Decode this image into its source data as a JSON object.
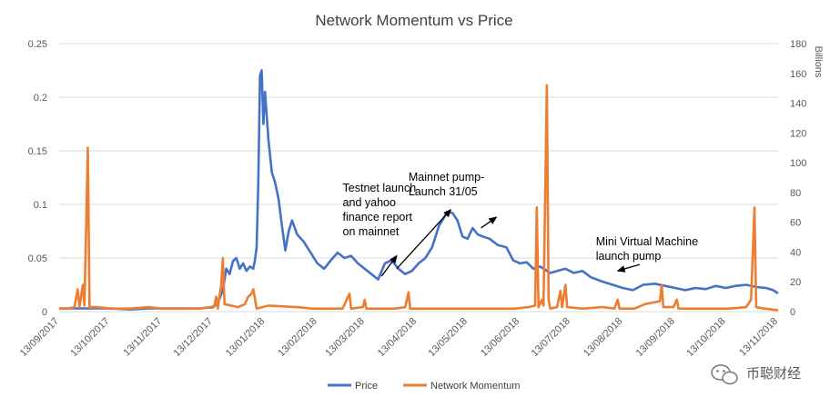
{
  "chart_data": {
    "type": "line",
    "title": "Network Momentum vs Price",
    "xlabel": "",
    "ylabel": "",
    "y2label": "Billions",
    "x_ticks": [
      "13/09/2017",
      "13/10/2017",
      "13/11/2017",
      "13/12/2017",
      "13/01/2018",
      "13/02/2018",
      "13/03/2018",
      "13/04/2018",
      "13/05/2018",
      "13/06/2018",
      "13/07/2018",
      "13/08/2018",
      "13/09/2018",
      "13/10/2018",
      "13/11/2018"
    ],
    "ylim": [
      0,
      0.25
    ],
    "y_ticks": [
      "0",
      "0.05",
      "0.1",
      "0.15",
      "0.2",
      "0.25"
    ],
    "y2lim": [
      0,
      180
    ],
    "y2_ticks": [
      "0",
      "20",
      "40",
      "60",
      "80",
      "100",
      "120",
      "140",
      "160",
      "180"
    ],
    "grid": true,
    "legend_position": "bottom",
    "series": [
      {
        "name": "Price",
        "axis": "left",
        "color": "#4472c4",
        "points": [
          [
            "2017-09-13",
            0.003
          ],
          [
            "2017-09-20",
            0.003
          ],
          [
            "2017-10-01",
            0.003
          ],
          [
            "2017-10-13",
            0.003
          ],
          [
            "2017-10-25",
            0.002
          ],
          [
            "2017-11-05",
            0.003
          ],
          [
            "2017-11-13",
            0.003
          ],
          [
            "2017-11-25",
            0.003
          ],
          [
            "2017-12-05",
            0.003
          ],
          [
            "2017-12-13",
            0.004
          ],
          [
            "2017-12-16",
            0.008
          ],
          [
            "2017-12-19",
            0.02
          ],
          [
            "2017-12-21",
            0.04
          ],
          [
            "2017-12-23",
            0.035
          ],
          [
            "2017-12-25",
            0.047
          ],
          [
            "2017-12-27",
            0.05
          ],
          [
            "2017-12-29",
            0.04
          ],
          [
            "2017-12-31",
            0.045
          ],
          [
            "2018-01-02",
            0.038
          ],
          [
            "2018-01-04",
            0.042
          ],
          [
            "2018-01-06",
            0.04
          ],
          [
            "2018-01-07",
            0.048
          ],
          [
            "2018-01-08",
            0.06
          ],
          [
            "2018-01-09",
            0.12
          ],
          [
            "2018-01-10",
            0.22
          ],
          [
            "2018-01-11",
            0.225
          ],
          [
            "2018-01-12",
            0.175
          ],
          [
            "2018-01-13",
            0.205
          ],
          [
            "2018-01-15",
            0.16
          ],
          [
            "2018-01-17",
            0.13
          ],
          [
            "2018-01-19",
            0.12
          ],
          [
            "2018-01-21",
            0.105
          ],
          [
            "2018-01-23",
            0.08
          ],
          [
            "2018-01-25",
            0.057
          ],
          [
            "2018-01-27",
            0.075
          ],
          [
            "2018-01-29",
            0.085
          ],
          [
            "2018-02-01",
            0.072
          ],
          [
            "2018-02-05",
            0.065
          ],
          [
            "2018-02-09",
            0.055
          ],
          [
            "2018-02-13",
            0.045
          ],
          [
            "2018-02-17",
            0.04
          ],
          [
            "2018-02-21",
            0.048
          ],
          [
            "2018-02-25",
            0.055
          ],
          [
            "2018-03-01",
            0.05
          ],
          [
            "2018-03-05",
            0.052
          ],
          [
            "2018-03-09",
            0.045
          ],
          [
            "2018-03-13",
            0.04
          ],
          [
            "2018-03-17",
            0.035
          ],
          [
            "2018-03-21",
            0.03
          ],
          [
            "2018-03-25",
            0.045
          ],
          [
            "2018-03-29",
            0.048
          ],
          [
            "2018-04-02",
            0.04
          ],
          [
            "2018-04-06",
            0.035
          ],
          [
            "2018-04-10",
            0.038
          ],
          [
            "2018-04-14",
            0.045
          ],
          [
            "2018-04-18",
            0.05
          ],
          [
            "2018-04-22",
            0.06
          ],
          [
            "2018-04-26",
            0.08
          ],
          [
            "2018-05-01",
            0.093
          ],
          [
            "2018-05-04",
            0.092
          ],
          [
            "2018-05-07",
            0.085
          ],
          [
            "2018-05-10",
            0.07
          ],
          [
            "2018-05-13",
            0.068
          ],
          [
            "2018-05-16",
            0.078
          ],
          [
            "2018-05-19",
            0.072
          ],
          [
            "2018-05-22",
            0.07
          ],
          [
            "2018-05-26",
            0.068
          ],
          [
            "2018-05-31",
            0.062
          ],
          [
            "2018-06-05",
            0.06
          ],
          [
            "2018-06-09",
            0.048
          ],
          [
            "2018-06-13",
            0.045
          ],
          [
            "2018-06-17",
            0.046
          ],
          [
            "2018-06-21",
            0.04
          ],
          [
            "2018-06-25",
            0.042
          ],
          [
            "2018-07-01",
            0.036
          ],
          [
            "2018-07-05",
            0.038
          ],
          [
            "2018-07-10",
            0.04
          ],
          [
            "2018-07-15",
            0.036
          ],
          [
            "2018-07-20",
            0.038
          ],
          [
            "2018-07-25",
            0.032
          ],
          [
            "2018-08-01",
            0.028
          ],
          [
            "2018-08-07",
            0.025
          ],
          [
            "2018-08-13",
            0.022
          ],
          [
            "2018-08-19",
            0.02
          ],
          [
            "2018-08-25",
            0.025
          ],
          [
            "2018-09-01",
            0.026
          ],
          [
            "2018-09-07",
            0.024
          ],
          [
            "2018-09-13",
            0.022
          ],
          [
            "2018-09-19",
            0.02
          ],
          [
            "2018-09-25",
            0.022
          ],
          [
            "2018-10-01",
            0.021
          ],
          [
            "2018-10-07",
            0.024
          ],
          [
            "2018-10-13",
            0.022
          ],
          [
            "2018-10-19",
            0.024
          ],
          [
            "2018-10-25",
            0.025
          ],
          [
            "2018-10-31",
            0.023
          ],
          [
            "2018-11-06",
            0.022
          ],
          [
            "2018-11-10",
            0.02
          ],
          [
            "2018-11-13",
            0.017
          ]
        ]
      },
      {
        "name": "Network Momentum",
        "axis": "right",
        "color": "#ed7d31",
        "points": [
          [
            "2017-09-13",
            2
          ],
          [
            "2017-09-18",
            2
          ],
          [
            "2017-09-22",
            3
          ],
          [
            "2017-09-24",
            15
          ],
          [
            "2017-09-25",
            3
          ],
          [
            "2017-09-27",
            18
          ],
          [
            "2017-09-28",
            4
          ],
          [
            "2017-09-30",
            110
          ],
          [
            "2017-10-01",
            3
          ],
          [
            "2017-10-05",
            3
          ],
          [
            "2017-10-15",
            2
          ],
          [
            "2017-10-25",
            2
          ],
          [
            "2017-11-05",
            3
          ],
          [
            "2017-11-13",
            2
          ],
          [
            "2017-11-25",
            2
          ],
          [
            "2017-12-05",
            2
          ],
          [
            "2017-12-12",
            3
          ],
          [
            "2017-12-14",
            4
          ],
          [
            "2017-12-15",
            10
          ],
          [
            "2017-12-16",
            2
          ],
          [
            "2017-12-18",
            18
          ],
          [
            "2017-12-19",
            36
          ],
          [
            "2017-12-20",
            5
          ],
          [
            "2017-12-28",
            3
          ],
          [
            "2018-01-01",
            5
          ],
          [
            "2018-01-03",
            10
          ],
          [
            "2018-01-05",
            12
          ],
          [
            "2018-01-06",
            15
          ],
          [
            "2018-01-08",
            2
          ],
          [
            "2018-01-15",
            4
          ],
          [
            "2018-02-01",
            3
          ],
          [
            "2018-02-10",
            2
          ],
          [
            "2018-02-28",
            2
          ],
          [
            "2018-03-04",
            12
          ],
          [
            "2018-03-05",
            2
          ],
          [
            "2018-03-12",
            3
          ],
          [
            "2018-03-13",
            8
          ],
          [
            "2018-03-14",
            2
          ],
          [
            "2018-03-25",
            2
          ],
          [
            "2018-03-31",
            2
          ],
          [
            "2018-04-06",
            3
          ],
          [
            "2018-04-08",
            13
          ],
          [
            "2018-04-09",
            2
          ],
          [
            "2018-04-20",
            2
          ],
          [
            "2018-05-01",
            2
          ],
          [
            "2018-05-20",
            2
          ],
          [
            "2018-06-10",
            2
          ],
          [
            "2018-06-18",
            3
          ],
          [
            "2018-06-22",
            4
          ],
          [
            "2018-06-23",
            70
          ],
          [
            "2018-06-24",
            3
          ],
          [
            "2018-06-26",
            8
          ],
          [
            "2018-06-27",
            4
          ],
          [
            "2018-06-29",
            152
          ],
          [
            "2018-06-30",
            8
          ],
          [
            "2018-07-01",
            2
          ],
          [
            "2018-07-05",
            3
          ],
          [
            "2018-07-07",
            14
          ],
          [
            "2018-07-08",
            3
          ],
          [
            "2018-07-10",
            18
          ],
          [
            "2018-07-11",
            3
          ],
          [
            "2018-07-20",
            2
          ],
          [
            "2018-08-01",
            3
          ],
          [
            "2018-08-08",
            2
          ],
          [
            "2018-08-10",
            8
          ],
          [
            "2018-08-11",
            2
          ],
          [
            "2018-08-20",
            2
          ],
          [
            "2018-08-26",
            5
          ],
          [
            "2018-09-04",
            7
          ],
          [
            "2018-09-05",
            18
          ],
          [
            "2018-09-06",
            3
          ],
          [
            "2018-09-12",
            3
          ],
          [
            "2018-09-14",
            8
          ],
          [
            "2018-09-15",
            2
          ],
          [
            "2018-10-01",
            2
          ],
          [
            "2018-10-15",
            2
          ],
          [
            "2018-10-25",
            3
          ],
          [
            "2018-10-28",
            8
          ],
          [
            "2018-10-30",
            70
          ],
          [
            "2018-10-31",
            3
          ],
          [
            "2018-11-05",
            2
          ],
          [
            "2018-11-13",
            1
          ]
        ]
      }
    ],
    "annotations": [
      {
        "lines": [
          "Testnet launch",
          "and yahoo",
          "finance report",
          "on mainnet"
        ],
        "text_at": [
          "2018-02-28",
          0.112
        ],
        "arrow_from": [
          "2018-03-23",
          0.033
        ],
        "arrow_to": [
          "2018-04-01",
          0.052
        ]
      },
      {
        "lines": [
          "Mainnet pump-",
          "Launch 31/05"
        ],
        "text_at": [
          "2018-04-08",
          0.122
        ],
        "arrow_from": [
          "2018-04-01",
          0.04
        ],
        "arrow_to": [
          "2018-05-03",
          0.095
        ],
        "arrow2_from": [
          "2018-05-21",
          0.078
        ],
        "arrow2_to": [
          "2018-05-30",
          0.088
        ]
      },
      {
        "lines": [
          "Mini Virtual Machine",
          "launch pump"
        ],
        "text_at": [
          "2018-07-28",
          0.062
        ],
        "arrow_from": [
          "2018-08-23",
          0.044
        ],
        "arrow_to": [
          "2018-08-10",
          0.038
        ]
      }
    ]
  },
  "watermark": {
    "icon": "wechat-icon",
    "text": "币聪财经"
  }
}
